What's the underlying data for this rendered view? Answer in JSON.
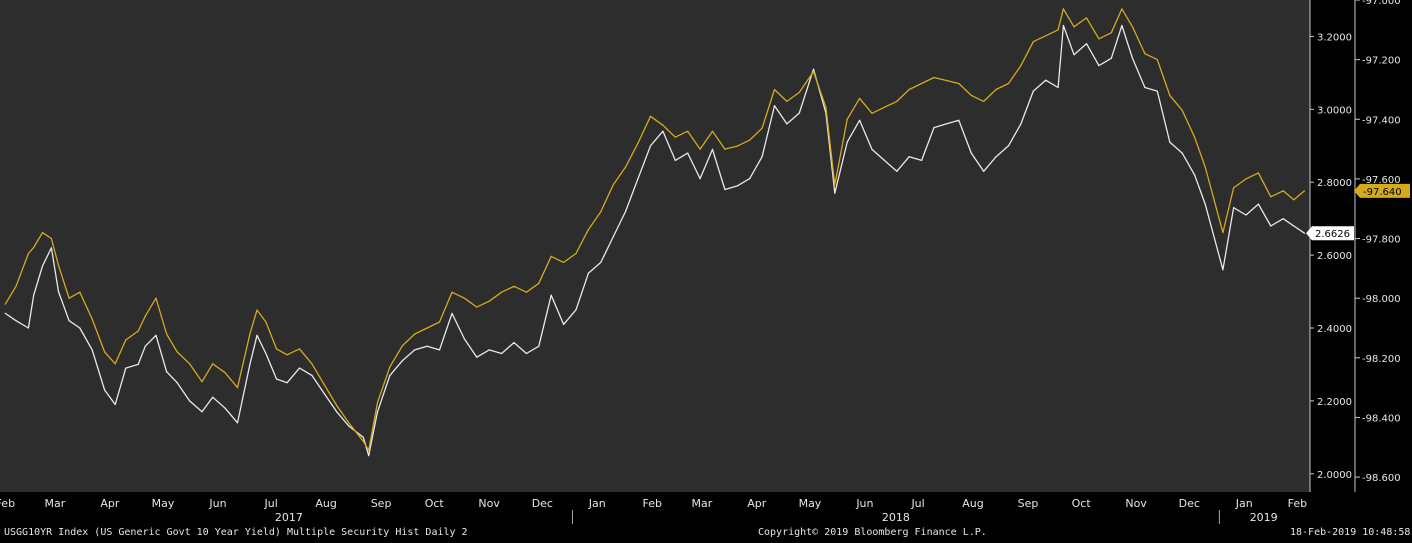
{
  "chart_data": {
    "type": "line",
    "title": "",
    "plot_background": "#2d2d2d",
    "y_left": {
      "ylim": [
        1.95,
        3.3
      ]
    },
    "y_right": {
      "label": "",
      "ylim": [
        -97.0,
        -98.65
      ],
      "scale": "linear",
      "ticks": [
        -97.0,
        -97.2,
        -97.4,
        -97.6,
        -97.8,
        -98.0,
        -98.2,
        -98.4,
        -98.6
      ],
      "tick_labels": [
        "-97.000",
        "-97.200",
        "-97.400",
        "-97.600",
        "-97.800",
        "-98.000",
        "-98.200",
        "-98.400",
        "-98.600"
      ]
    },
    "y_inner": {
      "ticks": [
        3.2,
        3.0,
        2.8,
        2.6,
        2.4,
        2.2,
        2.0
      ],
      "tick_labels": [
        "3.2000",
        "3.0000",
        "2.8000",
        "2.6000",
        "2.4000",
        "2.2000",
        "2.0000"
      ]
    },
    "x_axis": {
      "month_labels": [
        "Feb",
        "Mar",
        "Apr",
        "May",
        "Jun",
        "Jul",
        "Aug",
        "Sep",
        "Oct",
        "Nov",
        "Dec",
        "Jan",
        "Feb",
        "Mar",
        "Apr",
        "May",
        "Jun",
        "Jul",
        "Aug",
        "Sep",
        "Oct",
        "Nov",
        "Dec",
        "Jan",
        "Feb"
      ],
      "year_labels": [
        "2017",
        "2018",
        "2019"
      ]
    },
    "series": [
      {
        "color": "#e8e8e8",
        "axis": "left",
        "last_value_label": "2.6626",
        "points": [
          [
            "2017-02-15",
            2.44
          ],
          [
            "2017-02-21",
            2.42
          ],
          [
            "2017-02-28",
            2.4
          ],
          [
            "2017-03-03",
            2.49
          ],
          [
            "2017-03-08",
            2.57
          ],
          [
            "2017-03-13",
            2.62
          ],
          [
            "2017-03-17",
            2.5
          ],
          [
            "2017-03-23",
            2.42
          ],
          [
            "2017-03-29",
            2.4
          ],
          [
            "2017-04-05",
            2.34
          ],
          [
            "2017-04-12",
            2.23
          ],
          [
            "2017-04-18",
            2.19
          ],
          [
            "2017-04-24",
            2.29
          ],
          [
            "2017-05-01",
            2.3
          ],
          [
            "2017-05-05",
            2.35
          ],
          [
            "2017-05-11",
            2.38
          ],
          [
            "2017-05-17",
            2.28
          ],
          [
            "2017-05-23",
            2.25
          ],
          [
            "2017-05-30",
            2.2
          ],
          [
            "2017-06-06",
            2.17
          ],
          [
            "2017-06-12",
            2.21
          ],
          [
            "2017-06-19",
            2.18
          ],
          [
            "2017-06-26",
            2.14
          ],
          [
            "2017-07-03",
            2.3
          ],
          [
            "2017-07-07",
            2.38
          ],
          [
            "2017-07-12",
            2.33
          ],
          [
            "2017-07-18",
            2.26
          ],
          [
            "2017-07-24",
            2.25
          ],
          [
            "2017-07-31",
            2.29
          ],
          [
            "2017-08-07",
            2.27
          ],
          [
            "2017-08-14",
            2.22
          ],
          [
            "2017-08-21",
            2.17
          ],
          [
            "2017-08-28",
            2.13
          ],
          [
            "2017-09-05",
            2.1
          ],
          [
            "2017-09-08",
            2.05
          ],
          [
            "2017-09-13",
            2.17
          ],
          [
            "2017-09-20",
            2.27
          ],
          [
            "2017-09-27",
            2.31
          ],
          [
            "2017-10-04",
            2.34
          ],
          [
            "2017-10-11",
            2.35
          ],
          [
            "2017-10-18",
            2.34
          ],
          [
            "2017-10-25",
            2.44
          ],
          [
            "2017-11-01",
            2.37
          ],
          [
            "2017-11-08",
            2.32
          ],
          [
            "2017-11-15",
            2.34
          ],
          [
            "2017-11-22",
            2.33
          ],
          [
            "2017-11-29",
            2.36
          ],
          [
            "2017-12-06",
            2.33
          ],
          [
            "2017-12-13",
            2.35
          ],
          [
            "2017-12-20",
            2.49
          ],
          [
            "2017-12-27",
            2.41
          ],
          [
            "2018-01-03",
            2.45
          ],
          [
            "2018-01-10",
            2.55
          ],
          [
            "2018-01-17",
            2.58
          ],
          [
            "2018-01-24",
            2.65
          ],
          [
            "2018-01-31",
            2.72
          ],
          [
            "2018-02-07",
            2.81
          ],
          [
            "2018-02-14",
            2.9
          ],
          [
            "2018-02-21",
            2.94
          ],
          [
            "2018-02-28",
            2.86
          ],
          [
            "2018-03-07",
            2.88
          ],
          [
            "2018-03-14",
            2.81
          ],
          [
            "2018-03-21",
            2.89
          ],
          [
            "2018-03-28",
            2.78
          ],
          [
            "2018-04-04",
            2.79
          ],
          [
            "2018-04-11",
            2.81
          ],
          [
            "2018-04-18",
            2.87
          ],
          [
            "2018-04-25",
            3.01
          ],
          [
            "2018-05-02",
            2.96
          ],
          [
            "2018-05-09",
            2.99
          ],
          [
            "2018-05-17",
            3.11
          ],
          [
            "2018-05-24",
            2.99
          ],
          [
            "2018-05-29",
            2.77
          ],
          [
            "2018-06-05",
            2.91
          ],
          [
            "2018-06-12",
            2.97
          ],
          [
            "2018-06-19",
            2.89
          ],
          [
            "2018-06-26",
            2.86
          ],
          [
            "2018-07-03",
            2.83
          ],
          [
            "2018-07-10",
            2.87
          ],
          [
            "2018-07-17",
            2.86
          ],
          [
            "2018-07-24",
            2.95
          ],
          [
            "2018-07-31",
            2.96
          ],
          [
            "2018-08-07",
            2.97
          ],
          [
            "2018-08-14",
            2.88
          ],
          [
            "2018-08-21",
            2.83
          ],
          [
            "2018-08-28",
            2.87
          ],
          [
            "2018-09-04",
            2.9
          ],
          [
            "2018-09-11",
            2.96
          ],
          [
            "2018-09-18",
            3.05
          ],
          [
            "2018-09-25",
            3.08
          ],
          [
            "2018-10-02",
            3.06
          ],
          [
            "2018-10-05",
            3.23
          ],
          [
            "2018-10-11",
            3.15
          ],
          [
            "2018-10-18",
            3.18
          ],
          [
            "2018-10-25",
            3.12
          ],
          [
            "2018-11-01",
            3.14
          ],
          [
            "2018-11-07",
            3.23
          ],
          [
            "2018-11-13",
            3.14
          ],
          [
            "2018-11-20",
            3.06
          ],
          [
            "2018-11-27",
            3.05
          ],
          [
            "2018-12-04",
            2.91
          ],
          [
            "2018-12-11",
            2.88
          ],
          [
            "2018-12-18",
            2.82
          ],
          [
            "2018-12-24",
            2.74
          ],
          [
            "2019-01-03",
            2.56
          ],
          [
            "2019-01-09",
            2.73
          ],
          [
            "2019-01-16",
            2.71
          ],
          [
            "2019-01-23",
            2.74
          ],
          [
            "2019-01-30",
            2.68
          ],
          [
            "2019-02-06",
            2.7
          ],
          [
            "2019-02-12",
            2.68
          ],
          [
            "2019-02-18",
            2.66
          ]
        ]
      },
      {
        "color": "#d4aa1e",
        "axis": "right",
        "last_value_label": "-97.640",
        "points": [
          [
            "2017-02-15",
            -98.02
          ],
          [
            "2017-02-21",
            -97.96
          ],
          [
            "2017-02-28",
            -97.85
          ],
          [
            "2017-03-03",
            -97.83
          ],
          [
            "2017-03-08",
            -97.78
          ],
          [
            "2017-03-13",
            -97.8
          ],
          [
            "2017-03-17",
            -97.89
          ],
          [
            "2017-03-23",
            -98.0
          ],
          [
            "2017-03-29",
            -97.98
          ],
          [
            "2017-04-05",
            -98.07
          ],
          [
            "2017-04-12",
            -98.18
          ],
          [
            "2017-04-18",
            -98.22
          ],
          [
            "2017-04-24",
            -98.14
          ],
          [
            "2017-05-01",
            -98.11
          ],
          [
            "2017-05-05",
            -98.06
          ],
          [
            "2017-05-11",
            -98.0
          ],
          [
            "2017-05-17",
            -98.12
          ],
          [
            "2017-05-23",
            -98.18
          ],
          [
            "2017-05-30",
            -98.22
          ],
          [
            "2017-06-06",
            -98.28
          ],
          [
            "2017-06-12",
            -98.22
          ],
          [
            "2017-06-19",
            -98.25
          ],
          [
            "2017-06-26",
            -98.3
          ],
          [
            "2017-07-03",
            -98.12
          ],
          [
            "2017-07-07",
            -98.04
          ],
          [
            "2017-07-12",
            -98.08
          ],
          [
            "2017-07-18",
            -98.17
          ],
          [
            "2017-07-24",
            -98.19
          ],
          [
            "2017-07-31",
            -98.17
          ],
          [
            "2017-08-07",
            -98.22
          ],
          [
            "2017-08-14",
            -98.29
          ],
          [
            "2017-08-21",
            -98.36
          ],
          [
            "2017-08-28",
            -98.42
          ],
          [
            "2017-09-05",
            -98.48
          ],
          [
            "2017-09-08",
            -98.51
          ],
          [
            "2017-09-13",
            -98.35
          ],
          [
            "2017-09-20",
            -98.23
          ],
          [
            "2017-09-27",
            -98.16
          ],
          [
            "2017-10-04",
            -98.12
          ],
          [
            "2017-10-11",
            -98.1
          ],
          [
            "2017-10-18",
            -98.08
          ],
          [
            "2017-10-25",
            -97.98
          ],
          [
            "2017-11-01",
            -98.0
          ],
          [
            "2017-11-08",
            -98.03
          ],
          [
            "2017-11-15",
            -98.01
          ],
          [
            "2017-11-22",
            -97.98
          ],
          [
            "2017-11-29",
            -97.96
          ],
          [
            "2017-12-06",
            -97.98
          ],
          [
            "2017-12-13",
            -97.95
          ],
          [
            "2017-12-20",
            -97.86
          ],
          [
            "2017-12-27",
            -97.88
          ],
          [
            "2018-01-03",
            -97.85
          ],
          [
            "2018-01-10",
            -97.77
          ],
          [
            "2018-01-17",
            -97.71
          ],
          [
            "2018-01-24",
            -97.62
          ],
          [
            "2018-01-31",
            -97.56
          ],
          [
            "2018-02-07",
            -97.48
          ],
          [
            "2018-02-14",
            -97.39
          ],
          [
            "2018-02-21",
            -97.42
          ],
          [
            "2018-02-28",
            -97.46
          ],
          [
            "2018-03-07",
            -97.44
          ],
          [
            "2018-03-14",
            -97.5
          ],
          [
            "2018-03-21",
            -97.44
          ],
          [
            "2018-03-28",
            -97.5
          ],
          [
            "2018-04-04",
            -97.49
          ],
          [
            "2018-04-11",
            -97.47
          ],
          [
            "2018-04-18",
            -97.43
          ],
          [
            "2018-04-25",
            -97.3
          ],
          [
            "2018-05-02",
            -97.34
          ],
          [
            "2018-05-09",
            -97.31
          ],
          [
            "2018-05-17",
            -97.24
          ],
          [
            "2018-05-24",
            -97.36
          ],
          [
            "2018-05-29",
            -97.62
          ],
          [
            "2018-06-05",
            -97.4
          ],
          [
            "2018-06-12",
            -97.33
          ],
          [
            "2018-06-19",
            -97.38
          ],
          [
            "2018-06-26",
            -97.36
          ],
          [
            "2018-07-03",
            -97.34
          ],
          [
            "2018-07-10",
            -97.3
          ],
          [
            "2018-07-17",
            -97.28
          ],
          [
            "2018-07-24",
            -97.26
          ],
          [
            "2018-07-31",
            -97.27
          ],
          [
            "2018-08-07",
            -97.28
          ],
          [
            "2018-08-14",
            -97.32
          ],
          [
            "2018-08-21",
            -97.34
          ],
          [
            "2018-08-28",
            -97.3
          ],
          [
            "2018-09-04",
            -97.28
          ],
          [
            "2018-09-11",
            -97.22
          ],
          [
            "2018-09-18",
            -97.14
          ],
          [
            "2018-09-25",
            -97.12
          ],
          [
            "2018-10-02",
            -97.1
          ],
          [
            "2018-10-05",
            -97.03
          ],
          [
            "2018-10-11",
            -97.09
          ],
          [
            "2018-10-18",
            -97.06
          ],
          [
            "2018-10-25",
            -97.13
          ],
          [
            "2018-11-01",
            -97.11
          ],
          [
            "2018-11-07",
            -97.03
          ],
          [
            "2018-11-13",
            -97.09
          ],
          [
            "2018-11-20",
            -97.18
          ],
          [
            "2018-11-27",
            -97.2
          ],
          [
            "2018-12-04",
            -97.32
          ],
          [
            "2018-12-11",
            -97.37
          ],
          [
            "2018-12-18",
            -97.46
          ],
          [
            "2018-12-24",
            -97.56
          ],
          [
            "2019-01-03",
            -97.78
          ],
          [
            "2019-01-09",
            -97.63
          ],
          [
            "2019-01-16",
            -97.6
          ],
          [
            "2019-01-23",
            -97.58
          ],
          [
            "2019-01-30",
            -97.66
          ],
          [
            "2019-02-06",
            -97.64
          ],
          [
            "2019-02-12",
            -97.67
          ],
          [
            "2019-02-18",
            -97.64
          ]
        ]
      }
    ]
  },
  "footer": {
    "left_text": "USGG10YR Index (US Generic Govt 10 Year Yield) Multiple Security Hist   Daily 2",
    "center_text": "Copyright© 2019 Bloomberg Finance L.P.",
    "right_text": "18-Feb-2019 10:48:58"
  }
}
